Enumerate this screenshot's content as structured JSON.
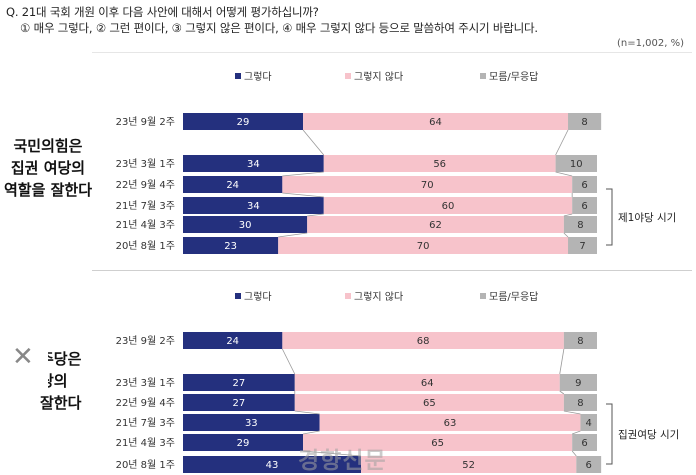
{
  "question": {
    "line1": "Q. 21대 국회 개원 이후 다음 사안에 대해서 어떻게 평가하십니까?",
    "line2": "① 매우 그렇다, ② 그런 편이다, ③ 그렇지 않은 편이다, ④ 매우 그렇지 않다 등으로 말씀하여 주시기 바랍니다.",
    "base": "(n=1,002, %)"
  },
  "watermark": "경향신문",
  "colors": {
    "yes": "#24307e",
    "no": "#f7c3cb",
    "dk": "#b4b4b4"
  },
  "chart_data": [
    {
      "type": "bar",
      "orientation": "horizontal",
      "stacked": true,
      "title": "국민의힘은 집권 여당의 역할을 잘한다",
      "legend": [
        "그렇다",
        "그렇지 않다",
        "모름/무응답"
      ],
      "legend_position": "top",
      "categories": [
        "23년 9월 2주",
        "23년 3월 1주",
        "22년 9월 4주",
        "21년 7월 3주",
        "21년 4월 3주",
        "20년 8월 1주"
      ],
      "series": [
        {
          "name": "그렇다",
          "values": [
            29,
            34,
            24,
            34,
            30,
            23
          ]
        },
        {
          "name": "그렇지 않다",
          "values": [
            64,
            56,
            70,
            60,
            62,
            70
          ]
        },
        {
          "name": "모름/무응답",
          "values": [
            8,
            10,
            6,
            6,
            8,
            7
          ]
        }
      ],
      "bracket_label": "제1야당 시기",
      "bracket_categories": [
        "21년 7월 3주",
        "21년 4월 3주",
        "20년 8월 1주"
      ]
    },
    {
      "type": "bar",
      "orientation": "horizontal",
      "stacked": true,
      "title": "주당은 당의 잘한다",
      "legend": [
        "그렇다",
        "그렇지 않다",
        "모름/무응답"
      ],
      "legend_position": "top",
      "categories": [
        "23년 9월 2주",
        "23년 3월 1주",
        "22년 9월 4주",
        "21년 7월 3주",
        "21년 4월 3주",
        "20년 8월 1주"
      ],
      "series": [
        {
          "name": "그렇다",
          "values": [
            24,
            27,
            27,
            33,
            29,
            43
          ]
        },
        {
          "name": "그렇지 않다",
          "values": [
            68,
            64,
            65,
            63,
            65,
            52
          ]
        },
        {
          "name": "모름/무응답",
          "values": [
            8,
            9,
            8,
            4,
            6,
            6
          ]
        }
      ],
      "bracket_label": "집권여당 시기",
      "bracket_categories": [
        "21년 7월 3주",
        "21년 4월 3주",
        "20년 8월 1주"
      ]
    }
  ]
}
